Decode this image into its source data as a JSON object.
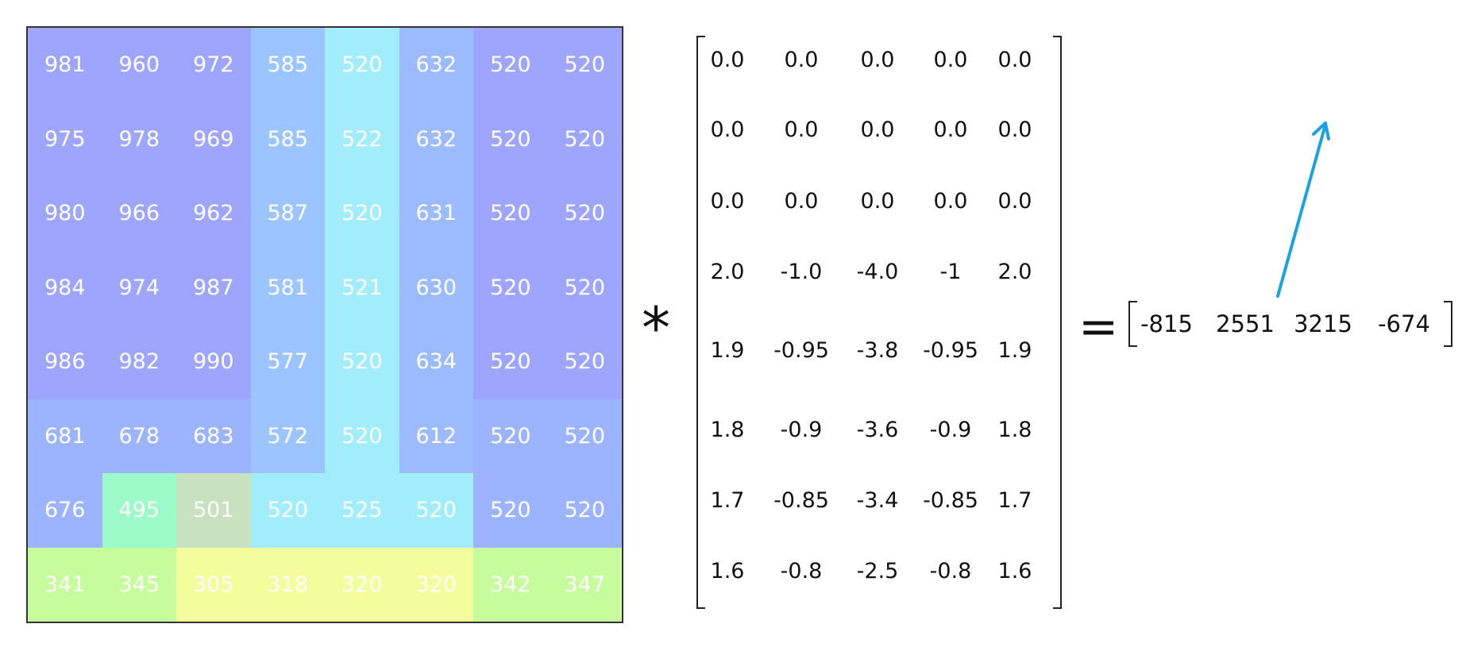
{
  "input_grid": {
    "rows": [
      [
        981,
        960,
        972,
        585,
        520,
        632,
        520,
        520
      ],
      [
        975,
        978,
        969,
        585,
        522,
        632,
        520,
        520
      ],
      [
        980,
        966,
        962,
        587,
        520,
        631,
        520,
        520
      ],
      [
        984,
        974,
        987,
        581,
        521,
        630,
        520,
        520
      ],
      [
        986,
        982,
        990,
        577,
        520,
        634,
        520,
        520
      ],
      [
        681,
        678,
        683,
        572,
        520,
        612,
        520,
        520
      ],
      [
        676,
        495,
        501,
        520,
        525,
        520,
        520,
        520
      ],
      [
        341,
        345,
        305,
        318,
        320,
        320,
        342,
        347
      ]
    ],
    "colors": [
      [
        "#9ea5fd",
        "#9ea5fd",
        "#9ea5fd",
        "#9cc4fe",
        "#a2edfc",
        "#9cbafe",
        "#9ea5fd",
        "#9ea5fd"
      ],
      [
        "#9ea5fd",
        "#9ea5fd",
        "#9ea5fd",
        "#9cc4fe",
        "#a2edfc",
        "#9cbafe",
        "#9ea5fd",
        "#9ea5fd"
      ],
      [
        "#9ea5fd",
        "#9ea5fd",
        "#9ea5fd",
        "#9cc4fe",
        "#a2edfc",
        "#9cbafe",
        "#9ea5fd",
        "#9ea5fd"
      ],
      [
        "#9ea5fd",
        "#9ea5fd",
        "#9ea5fd",
        "#9cc4fe",
        "#a2edfc",
        "#9cbafe",
        "#9ea5fd",
        "#9ea5fd"
      ],
      [
        "#9ea5fd",
        "#9ea5fd",
        "#9ea5fd",
        "#9cc4fe",
        "#a2edfc",
        "#9cbafe",
        "#9ea5fd",
        "#9ea5fd"
      ],
      [
        "#9cb4fd",
        "#9cb4fd",
        "#9cb4fd",
        "#9cc4fe",
        "#a2edfc",
        "#9cbafe",
        "#9cb4fd",
        "#9cb4fd"
      ],
      [
        "#9cb4fd",
        "#9cf9c8",
        "#c8e2c0",
        "#a2edfc",
        "#a2edfc",
        "#a2edfc",
        "#9cb4fd",
        "#9cb4fd"
      ],
      [
        "#c6fc9c",
        "#c6fc9c",
        "#f4fd9c",
        "#f4fd9c",
        "#f4fd9c",
        "#f4fd9c",
        "#c6fc9c",
        "#c6fc9c"
      ]
    ]
  },
  "operator_symbol": "*",
  "kernel": {
    "rows": [
      [
        "0.0",
        "0.0",
        "0.0",
        "0.0",
        "0.0"
      ],
      [
        "0.0",
        "0.0",
        "0.0",
        "0.0",
        "0.0"
      ],
      [
        "0.0",
        "0.0",
        "0.0",
        "0.0",
        "0.0"
      ],
      [
        "2.0",
        "-1.0",
        "-4.0",
        "-1",
        "2.0"
      ],
      [
        "1.9",
        "-0.95",
        "-3.8",
        "-0.95",
        "1.9"
      ],
      [
        "1.8",
        "-0.9",
        "-3.6",
        "-0.9",
        "1.8"
      ],
      [
        "1.7",
        "-0.85",
        "-3.4",
        "-0.85",
        "1.7"
      ],
      [
        "1.6",
        "-0.8",
        "-2.5",
        "-0.8",
        "1.6"
      ]
    ]
  },
  "equals_symbol": "=",
  "result_vector": [
    "-815",
    "2551",
    "3215",
    "-674"
  ],
  "arrow_color": "#1aa3e0",
  "text_color": "#111111",
  "cell_text_color": "#ffffff"
}
